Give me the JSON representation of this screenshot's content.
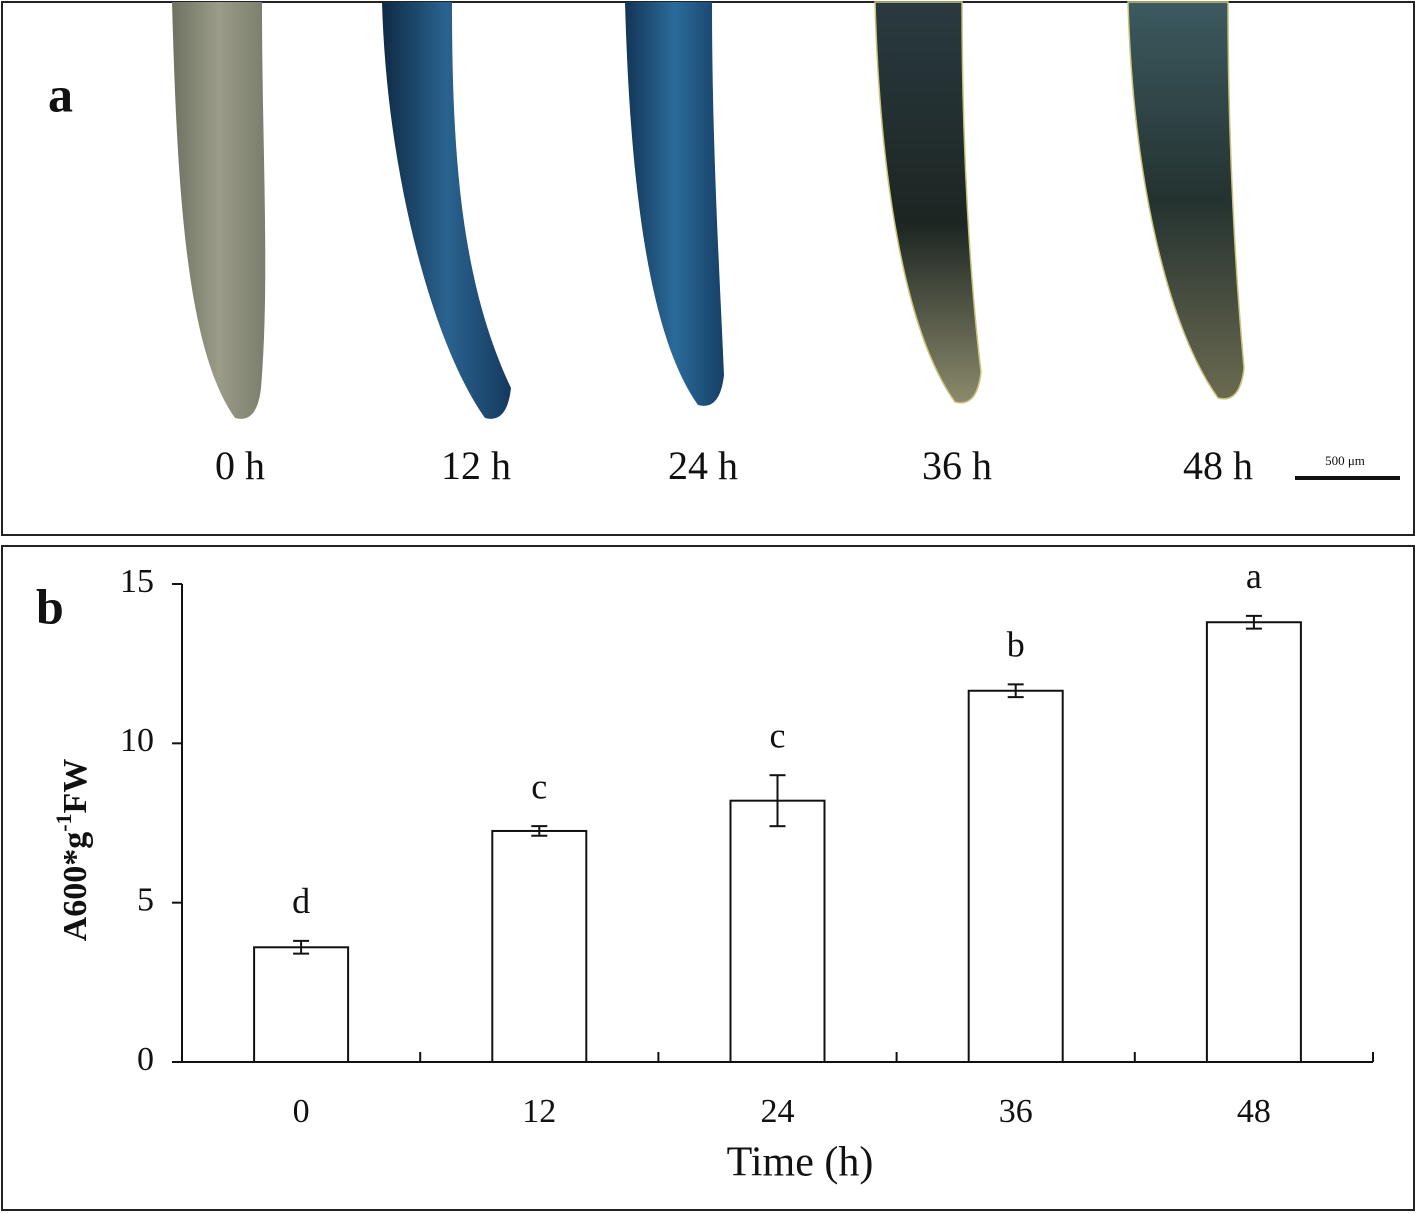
{
  "panel_a": {
    "label": "a",
    "images": [
      "0 h",
      "12 h",
      "24 h",
      "36 h",
      "48 h"
    ],
    "scale_bar": "500 μm"
  },
  "chart_data": {
    "type": "bar",
    "panel_label": "b",
    "categories": [
      "0",
      "12",
      "24",
      "36",
      "48"
    ],
    "values": [
      3.6,
      7.25,
      8.2,
      11.65,
      13.8
    ],
    "errors": [
      0.2,
      0.15,
      0.8,
      0.2,
      0.2
    ],
    "annotations": [
      "d",
      "c",
      "c",
      "b",
      "a"
    ],
    "color": "#ffffff",
    "ylim": [
      0,
      15
    ],
    "yticks": [
      0,
      5,
      10,
      15
    ],
    "xlabel": "Time (h)",
    "ylabel": [
      "A600*g",
      "-1",
      "FW"
    ],
    "grid": false
  }
}
